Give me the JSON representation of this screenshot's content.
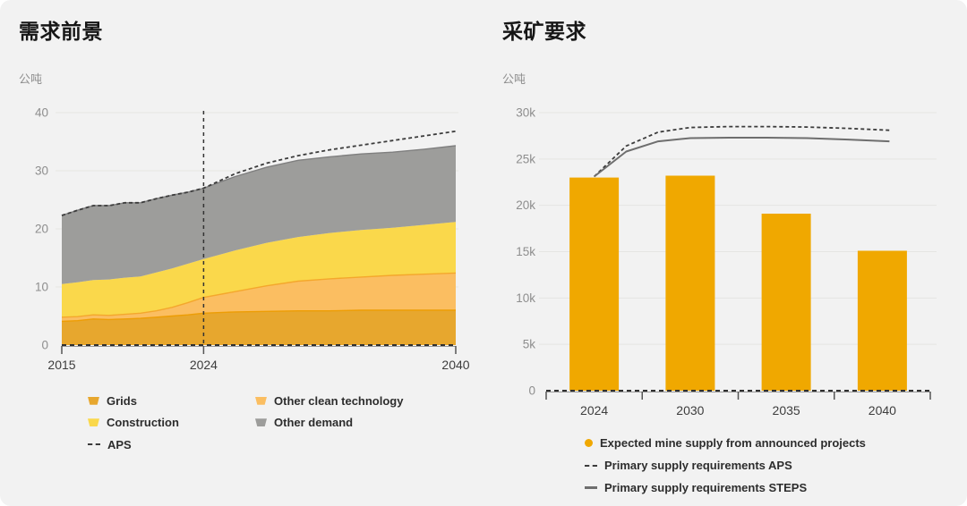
{
  "card": {
    "background": "#f2f2f2"
  },
  "chart_data": [
    {
      "type": "area",
      "title": "需求前景",
      "ylabel": "公吨",
      "x": [
        2015,
        2016,
        2017,
        2018,
        2019,
        2020,
        2021,
        2022,
        2023,
        2024,
        2026,
        2028,
        2030,
        2032,
        2034,
        2036,
        2038,
        2040
      ],
      "series": [
        {
          "name": "Grids",
          "color": "#E7A72E",
          "edge": "#ED9D05",
          "values": [
            4.1,
            4.2,
            4.5,
            4.4,
            4.5,
            4.6,
            4.8,
            5.0,
            5.2,
            5.5,
            5.7,
            5.8,
            5.9,
            5.9,
            6.0,
            6.0,
            6.0,
            6.0
          ]
        },
        {
          "name": "Other clean technology",
          "color": "#FBBE61",
          "edge": "#F4A72C",
          "values": [
            0.7,
            0.7,
            0.7,
            0.7,
            0.8,
            0.9,
            1.1,
            1.5,
            2.1,
            2.7,
            3.5,
            4.4,
            5.1,
            5.5,
            5.7,
            6.0,
            6.2,
            6.4
          ]
        },
        {
          "name": "Construction",
          "color": "#FAD84B",
          "edge": "",
          "values": [
            5.7,
            5.9,
            6.0,
            6.2,
            6.3,
            6.3,
            6.6,
            6.7,
            6.7,
            6.6,
            7.1,
            7.4,
            7.6,
            7.9,
            8.1,
            8.2,
            8.5,
            8.8
          ]
        },
        {
          "name": "Other demand",
          "color": "#9D9D9B",
          "edge": "#7f7f7f",
          "values": [
            11.8,
            12.4,
            12.8,
            12.7,
            12.9,
            12.7,
            12.7,
            12.6,
            12.3,
            12.2,
            12.7,
            13.0,
            13.2,
            13.1,
            13.1,
            13.0,
            13.0,
            13.1
          ]
        }
      ],
      "aps_line": {
        "name": "APS",
        "style": "dashed",
        "color": "#3c3c3c",
        "values": [
          22.3,
          23.2,
          24.0,
          24.0,
          24.5,
          24.5,
          25.2,
          25.8,
          26.3,
          27.0,
          29.5,
          31.3,
          32.6,
          33.6,
          34.4,
          35.2,
          36.0,
          36.8
        ]
      },
      "current_year_marker": 2024,
      "ylim": [
        0,
        40
      ],
      "ytick_values": [
        0,
        10,
        20,
        30,
        40
      ],
      "ytick_labels": [
        "0",
        "10",
        "20",
        "30",
        "40"
      ],
      "xtick_years": [
        2015,
        2024,
        2040
      ],
      "xtick_labels": [
        "2015",
        "2024",
        "2040"
      ],
      "grid": "horizontal"
    },
    {
      "type": "bar",
      "title": "采矿要求",
      "ylabel": "公吨",
      "categories": [
        "2024",
        "2030",
        "2035",
        "2040"
      ],
      "bar_series": {
        "name": "Expected mine supply from announced projects",
        "color": "#F0A800",
        "values": [
          23000,
          23200,
          19100,
          15100
        ]
      },
      "lines": [
        {
          "name": "Primary supply requirements APS",
          "style": "dashed",
          "color": "#3c3c3c",
          "points": [
            [
              2024,
              23100
            ],
            [
              2026,
              26400
            ],
            [
              2028,
              27900
            ],
            [
              2030,
              28400
            ],
            [
              2032,
              28500
            ],
            [
              2034,
              28500
            ],
            [
              2036,
              28450
            ],
            [
              2038,
              28300
            ],
            [
              2040,
              28100
            ]
          ]
        },
        {
          "name": "Primary supply requirements STEPS",
          "style": "solid",
          "color": "#6e6e6e",
          "points": [
            [
              2024,
              23100
            ],
            [
              2026,
              25800
            ],
            [
              2028,
              26900
            ],
            [
              2030,
              27250
            ],
            [
              2032,
              27300
            ],
            [
              2034,
              27300
            ],
            [
              2036,
              27250
            ],
            [
              2038,
              27100
            ],
            [
              2040,
              26900
            ]
          ]
        }
      ],
      "ylim": [
        0,
        30000
      ],
      "ytick_values": [
        0,
        5000,
        10000,
        15000,
        20000,
        25000,
        30000
      ],
      "ytick_labels": [
        "0",
        "5k",
        "10k",
        "15k",
        "20k",
        "25k",
        "30k"
      ],
      "grid": "horizontal"
    }
  ],
  "style": {
    "grid_line_color": "#e5e5e3",
    "baseline_dash_color": "#2f2f2f",
    "baseline_solid_color": "#999999",
    "tick_color": "#555555"
  }
}
